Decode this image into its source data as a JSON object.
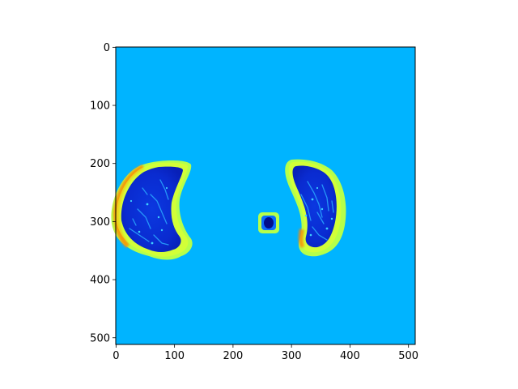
{
  "figure": {
    "colormap": "jet",
    "background_color": "#00b4ff",
    "axes": {
      "x_ticks": [
        {
          "value": 0,
          "label": "0"
        },
        {
          "value": 100,
          "label": "100"
        },
        {
          "value": 200,
          "label": "200"
        },
        {
          "value": 300,
          "label": "300"
        },
        {
          "value": 400,
          "label": "400"
        },
        {
          "value": 500,
          "label": "500"
        }
      ],
      "y_ticks": [
        {
          "value": 0,
          "label": "0"
        },
        {
          "value": 100,
          "label": "100"
        },
        {
          "value": 200,
          "label": "200"
        },
        {
          "value": 300,
          "label": "300"
        },
        {
          "value": 400,
          "label": "400"
        },
        {
          "value": 500,
          "label": "500"
        }
      ],
      "x_range": [
        0,
        512
      ],
      "y_range": [
        512,
        0
      ],
      "origin": "top-left"
    },
    "image_content": {
      "subject": "lung-ct-slice-heatmap",
      "rim_color": "#b6ff4a",
      "edge_highlight_color": "#ff8a00",
      "lung_fill_color": "#0a2bd0",
      "vessel_color": "#2aa8ff",
      "trachea_color": "#000d8a"
    }
  }
}
